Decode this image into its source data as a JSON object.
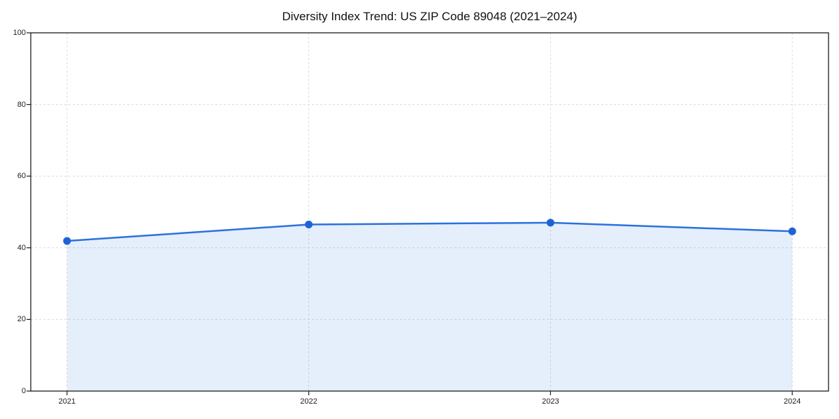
{
  "chart_data": {
    "type": "area",
    "title": "Diversity Index Trend: US ZIP Code 89048 (2021–2024)",
    "categories": [
      "2021",
      "2022",
      "2023",
      "2024"
    ],
    "series": [
      {
        "name": "Diversity Index",
        "values": [
          41.9,
          46.5,
          47.0,
          44.6
        ]
      }
    ],
    "xlabel": "",
    "ylabel": "",
    "ylim": [
      0,
      100
    ],
    "yticks": [
      0,
      20,
      40,
      60,
      80,
      100
    ],
    "grid": "dashed, horizontal and vertical",
    "legend_position": "none"
  },
  "colors": {
    "line": "#2a72de",
    "marker": "#1e63d6",
    "area_fill": "#2a72de",
    "area_fill_opacity": "0.12",
    "grid": "#dcdcdc",
    "axis": "#1c1c1c",
    "tick_text": "#1c1c1c",
    "background": "#ffffff"
  }
}
